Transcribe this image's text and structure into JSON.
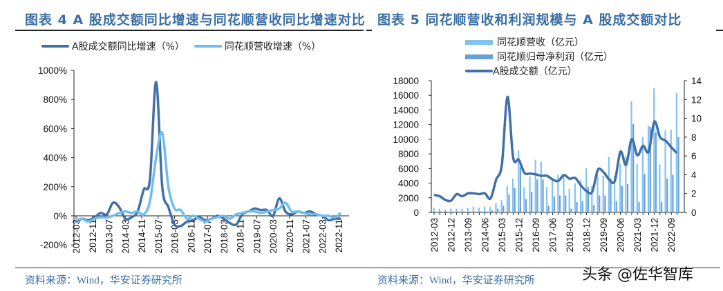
{
  "left_chart": {
    "title": "图表 4 A 股成交额同比增速与同花顺营收同比增速对比",
    "legend": [
      "A股成交额同比增速（%）",
      "同花顺营收增速（%）"
    ],
    "source": "资料来源：Wind，华安证券研究所"
  },
  "right_chart": {
    "title": "图表 5 同花顺营收和利润规模与 A 股成交额对比",
    "legend": [
      "同花顺营收（亿元）",
      "同花顺归母净利润（亿元）",
      "A股成交额（亿元）"
    ],
    "source": "资料来源：Wind，华安证券研究所"
  },
  "watermark": "头条 @佐华智库",
  "colors": {
    "dark": "#4170a8",
    "light": "#6fbdf0",
    "bar_light": "#7fc3f0",
    "bar_mid": "#6a9ed8",
    "title": "#3a6ea5"
  },
  "chart_data": [
    {
      "type": "line",
      "title": "图表 4 A 股成交额同比增速与同花顺营收同比增速对比",
      "x_tick_labels": [
        "2012-03",
        "2012-11",
        "2013-07",
        "2014-03",
        "2014-11",
        "2015-07",
        "2016-03",
        "2016-11",
        "2017-07",
        "2018-03",
        "2018-11",
        "2019-07",
        "2020-03",
        "2020-11",
        "2021-07",
        "2022-03",
        "2022-11"
      ],
      "x": [
        "2012Q1",
        "2012Q2",
        "2012Q3",
        "2012Q4",
        "2013Q1",
        "2013Q2",
        "2013Q3",
        "2013Q4",
        "2014Q1",
        "2014Q2",
        "2014Q3",
        "2014Q4",
        "2015Q1",
        "2015Q2",
        "2015Q3",
        "2015Q4",
        "2016Q1",
        "2016Q2",
        "2016Q3",
        "2016Q4",
        "2017Q1",
        "2017Q2",
        "2017Q3",
        "2017Q4",
        "2018Q1",
        "2018Q2",
        "2018Q3",
        "2018Q4",
        "2019Q1",
        "2019Q2",
        "2019Q3",
        "2019Q4",
        "2020Q1",
        "2020Q2",
        "2020Q3",
        "2020Q4",
        "2021Q1",
        "2021Q2",
        "2021Q3",
        "2021Q4",
        "2022Q1",
        "2022Q2",
        "2022Q3",
        "2022Q4"
      ],
      "y_ticks": [
        "1000%",
        "800%",
        "600%",
        "400%",
        "200%",
        "0%",
        "-200%"
      ],
      "ylim": [
        -200,
        1000
      ],
      "series": [
        {
          "name": "A股成交额同比增速（%）",
          "values": [
            -40,
            -20,
            -30,
            -10,
            20,
            10,
            90,
            60,
            -20,
            -10,
            30,
            180,
            250,
            920,
            200,
            60,
            -60,
            -70,
            -40,
            -30,
            -10,
            -30,
            -20,
            0,
            -20,
            -50,
            -60,
            10,
            30,
            50,
            40,
            40,
            0,
            120,
            30,
            10,
            30,
            20,
            30,
            10,
            0,
            -30,
            -20,
            -20
          ]
        },
        {
          "name": "同花顺营收增速（%）",
          "values": [
            -30,
            -20,
            -40,
            -20,
            -10,
            -10,
            0,
            20,
            30,
            20,
            30,
            10,
            100,
            400,
            570,
            200,
            50,
            40,
            -20,
            0,
            -20,
            -40,
            -20,
            -10,
            0,
            -20,
            10,
            20,
            30,
            30,
            20,
            30,
            40,
            50,
            90,
            30,
            30,
            20,
            10,
            10,
            0,
            0,
            -10,
            20
          ]
        }
      ]
    },
    {
      "type": "bar+line",
      "title": "图表 5 同花顺营收和利润规模与 A 股成交额对比",
      "x_tick_labels": [
        "2012-03",
        "2012-12",
        "2013-09",
        "2014-06",
        "2015-03",
        "2015-12",
        "2016-09",
        "2017-06",
        "2018-03",
        "2018-12",
        "2019-09",
        "2020-06",
        "2021-03",
        "2021-12",
        "2022-09"
      ],
      "y_left_ticks": [
        "18000",
        "16000",
        "14000",
        "12000",
        "10000",
        "8000",
        "6000",
        "4000",
        "2000",
        "0"
      ],
      "y_right_ticks": [
        "14",
        "12",
        "10",
        "8",
        "6",
        "4",
        "2",
        "0"
      ],
      "ylim_left": [
        0,
        18000
      ],
      "ylim_right": [
        0,
        14
      ],
      "series": [
        {
          "name": "同花顺营收（亿元）",
          "axis": "right",
          "type": "bar",
          "values": [
            0.5,
            0.4,
            0.3,
            0.4,
            0.4,
            0.4,
            0.5,
            0.6,
            0.5,
            0.6,
            0.6,
            1.0,
            1.3,
            2.8,
            3.6,
            6.6,
            2.7,
            3.8,
            5.6,
            5.4,
            2.7,
            3.6,
            4.0,
            4.0,
            2.5,
            3.1,
            3.4,
            4.7,
            2.8,
            4.0,
            3.9,
            5.9,
            3.9,
            5.2,
            6.0,
            11.8,
            5.2,
            8.0,
            9.2,
            13.2,
            5.1,
            8.7,
            8.8,
            12.7
          ]
        },
        {
          "name": "同花顺归母净利润（亿元）",
          "axis": "right",
          "type": "bar",
          "values": [
            0.1,
            0.1,
            0.1,
            0.1,
            0.1,
            0.1,
            0.1,
            0.1,
            0.1,
            0.1,
            0.2,
            0.4,
            0.7,
            1.9,
            2.6,
            4.8,
            1.4,
            2.2,
            3.5,
            3.5,
            0.7,
            1.7,
            1.8,
            1.8,
            0.4,
            1.1,
            1.2,
            2.7,
            0.8,
            1.8,
            1.8,
            3.6,
            1.2,
            2.8,
            3.0,
            9.4,
            1.1,
            4.1,
            9.1,
            8.5,
            1.1,
            3.6,
            4.0,
            8.0
          ]
        },
        {
          "name": "A股成交额（亿元）",
          "axis": "left",
          "type": "line",
          "values": [
            2400,
            2200,
            1700,
            1600,
            2500,
            2200,
            2600,
            2600,
            2500,
            2600,
            1900,
            4500,
            6500,
            15800,
            7500,
            7200,
            5400,
            5300,
            5200,
            5000,
            5000,
            4500,
            4300,
            5100,
            4600,
            4700,
            3700,
            2900,
            2800,
            5800,
            5500,
            4500,
            4300,
            8300,
            6500,
            10000,
            7800,
            9100,
            8300,
            12400,
            10300,
            9800,
            8900,
            8100
          ]
        }
      ]
    }
  ]
}
